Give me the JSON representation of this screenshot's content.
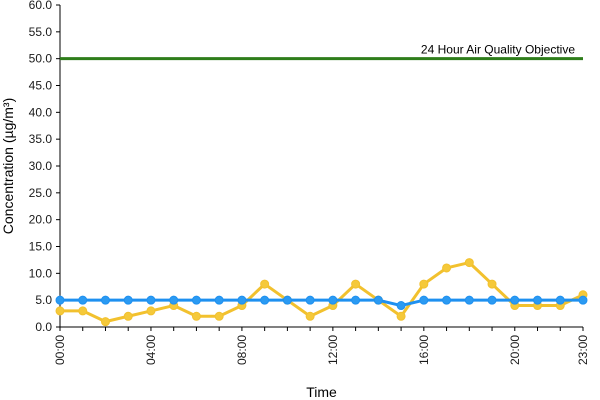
{
  "chart_data": {
    "type": "line",
    "xlabel": "Time",
    "ylabel": "Concentration (µg/m³)",
    "ylim": [
      0,
      60
    ],
    "y_ticks": [
      "0.0",
      "5.0",
      "10.0",
      "15.0",
      "20.0",
      "25.0",
      "30.0",
      "35.0",
      "40.0",
      "45.0",
      "50.0",
      "55.0",
      "60.0"
    ],
    "x_hours": [
      0,
      1,
      2,
      3,
      4,
      5,
      6,
      7,
      8,
      9,
      10,
      11,
      12,
      13,
      14,
      15,
      16,
      17,
      18,
      19,
      20,
      21,
      22,
      23
    ],
    "x_tick_labels": [
      {
        "hour": 0,
        "label": "00:00"
      },
      {
        "hour": 4,
        "label": "04:00"
      },
      {
        "hour": 8,
        "label": "08:00"
      },
      {
        "hour": 12,
        "label": "12:00"
      },
      {
        "hour": 16,
        "label": "16:00"
      },
      {
        "hour": 20,
        "label": "20:00"
      },
      {
        "hour": 23,
        "label": "23:00"
      }
    ],
    "grid": false,
    "legend": "none",
    "series": [
      {
        "color": "#f2c12e",
        "marker_fill": "#f5c93a",
        "values": [
          3,
          3,
          1,
          2,
          3,
          4,
          2,
          2,
          4,
          8,
          5,
          2,
          4,
          8,
          5,
          2,
          8,
          11,
          12,
          8,
          4,
          4,
          4,
          6
        ]
      },
      {
        "color": "#1e90f0",
        "marker_fill": "#2b9af2",
        "values": [
          5,
          5,
          5,
          5,
          5,
          5,
          5,
          5,
          5,
          5,
          5,
          5,
          5,
          5,
          5,
          4,
          5,
          5,
          5,
          5,
          5,
          5,
          5,
          5
        ]
      }
    ],
    "reference_line": {
      "value": 50,
      "label": "24 Hour Air Quality Objective",
      "color": "#2e7d1a"
    }
  }
}
